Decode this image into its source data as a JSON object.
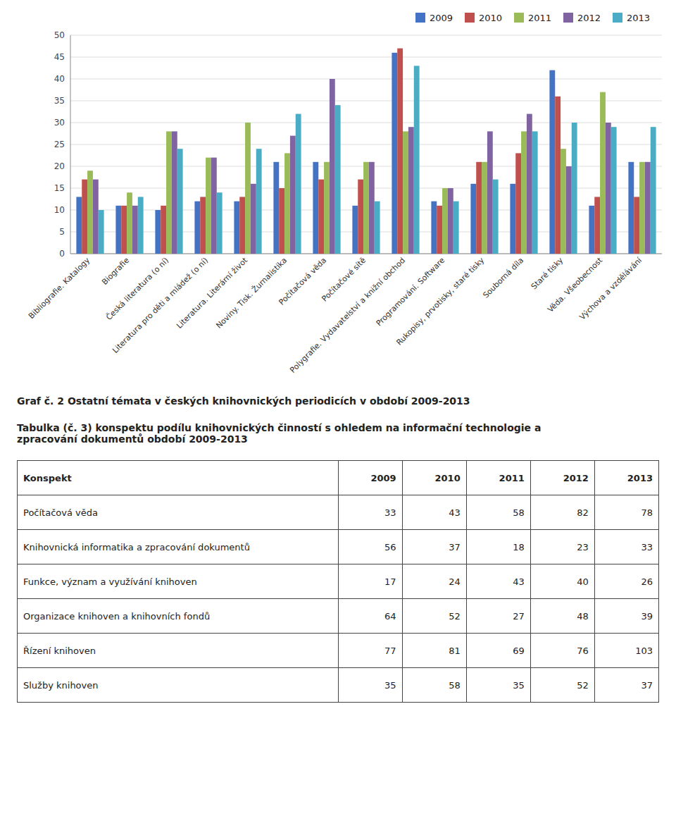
{
  "chart_data": {
    "type": "bar",
    "title": "Graf č. 2  Ostatní témata v českých knihovnických periodicích v období 2009-2013",
    "categories": [
      "Bibliografie. Katalogy",
      "Biografie",
      "Česká literatura (o ní)",
      "Literatura pro děti a mládež (o ní)",
      "Literatura. Literární život",
      "Noviny. Tisk. Žurnalistika",
      "Počítačová věda",
      "Počítačové sítě",
      "Polygrafie. Vydavatelství a knižní obchod",
      "Programování. Software",
      "Rukopisy, prvotisky, staré tisky",
      "Souborná díla",
      "Staré tisky",
      "Věda. Všeobecnost",
      "Výchova a vzdělávání"
    ],
    "series": [
      {
        "name": "2009",
        "color": "#4472C4",
        "values": [
          13,
          11,
          10,
          12,
          12,
          21,
          21,
          11,
          46,
          12,
          16,
          16,
          42,
          11,
          21
        ]
      },
      {
        "name": "2010",
        "color": "#C0504D",
        "values": [
          17,
          11,
          11,
          13,
          13,
          15,
          17,
          17,
          47,
          11,
          21,
          23,
          36,
          13,
          13
        ]
      },
      {
        "name": "2011",
        "color": "#9BBB59",
        "values": [
          19,
          14,
          28,
          22,
          30,
          23,
          21,
          21,
          28,
          15,
          21,
          28,
          24,
          37,
          21
        ]
      },
      {
        "name": "2012",
        "color": "#8064A2",
        "values": [
          17,
          11,
          28,
          22,
          16,
          27,
          40,
          21,
          29,
          15,
          28,
          32,
          20,
          30,
          21
        ]
      },
      {
        "name": "2013",
        "color": "#4BACC6",
        "values": [
          10,
          13,
          24,
          14,
          24,
          32,
          34,
          12,
          43,
          12,
          17,
          28,
          30,
          29,
          29
        ]
      }
    ],
    "ylim": [
      0,
      50
    ],
    "yticks": [
      0,
      5,
      10,
      15,
      20,
      25,
      30,
      35,
      40,
      45,
      50
    ],
    "grid": true,
    "legend": "upper right"
  },
  "table": {
    "title": [
      "Tabulka (č. 3) konspektu podílu knihovnických činností s ohledem na informační technologie a",
      "zpracování dokumentů  období 2009-2013"
    ],
    "headers": [
      "Konspekt",
      "2009",
      "2010",
      "2011",
      "2012",
      "2013"
    ],
    "rows": [
      [
        "Počítačová věda",
        "33",
        "43",
        "58",
        "82",
        "78"
      ],
      [
        "Knihovnická informatika a zpracování dokumentů",
        "56",
        "37",
        "18",
        "23",
        "33"
      ],
      [
        "Funkce, význam a využívání knihoven",
        "17",
        "24",
        "43",
        "40",
        "26"
      ],
      [
        "Organizace knihoven a knihovních fondů",
        "64",
        "52",
        "27",
        "48",
        "39"
      ],
      [
        "Řízení knihoven",
        "77",
        "81",
        "69",
        "76",
        "103"
      ],
      [
        "Služby knihoven",
        "35",
        "58",
        "35",
        "52",
        "37"
      ]
    ]
  }
}
